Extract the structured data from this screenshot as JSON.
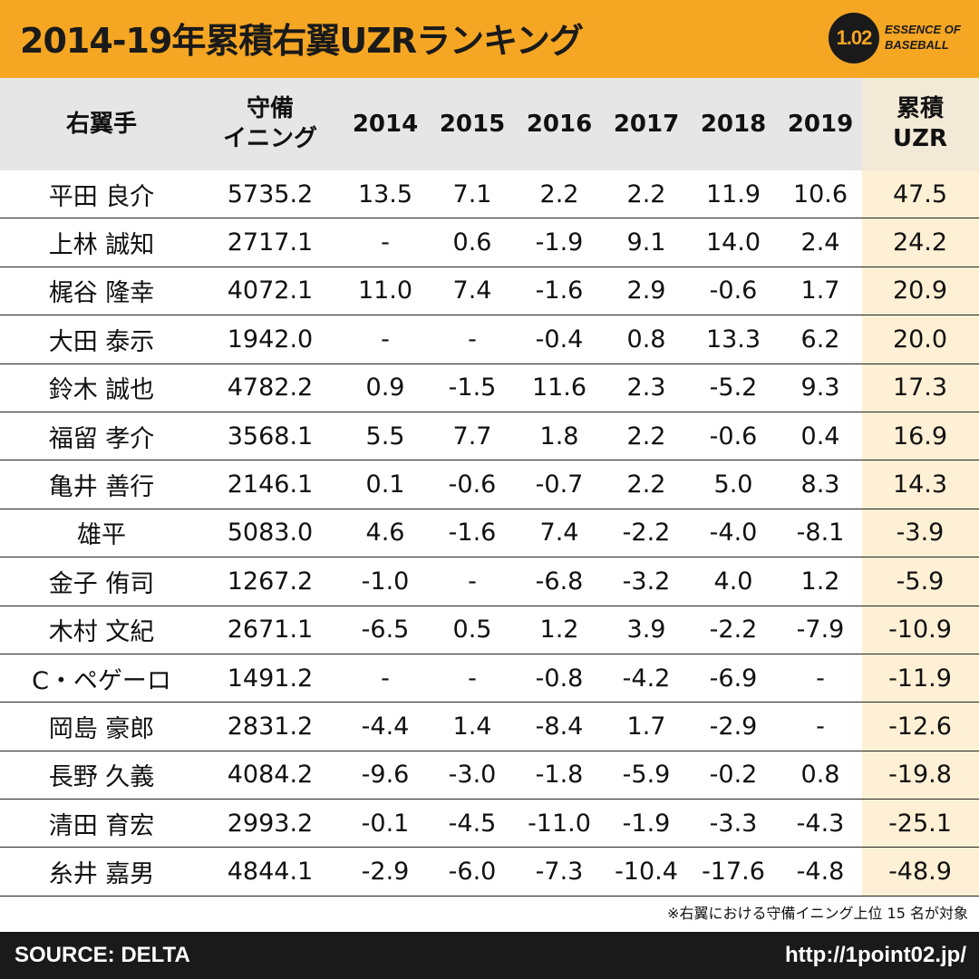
{
  "title": "2014-19年累積右翼UZRランキング",
  "logo": {
    "mark": "1.02",
    "line1": "ESSENCE OF",
    "line2": "BASEBALL"
  },
  "columns": [
    "右翼手",
    "守備\nイニング",
    "2014",
    "2015",
    "2016",
    "2017",
    "2018",
    "2019",
    "累積\nUZR"
  ],
  "rows": [
    [
      "平田 良介",
      "5735.2",
      "13.5",
      "7.1",
      "2.2",
      "2.2",
      "11.9",
      "10.6",
      "47.5"
    ],
    [
      "上林 誠知",
      "2717.1",
      "-",
      "0.6",
      "-1.9",
      "9.1",
      "14.0",
      "2.4",
      "24.2"
    ],
    [
      "梶谷 隆幸",
      "4072.1",
      "11.0",
      "7.4",
      "-1.6",
      "2.9",
      "-0.6",
      "1.7",
      "20.9"
    ],
    [
      "大田 泰示",
      "1942.0",
      "-",
      "-",
      "-0.4",
      "0.8",
      "13.3",
      "6.2",
      "20.0"
    ],
    [
      "鈴木 誠也",
      "4782.2",
      "0.9",
      "-1.5",
      "11.6",
      "2.3",
      "-5.2",
      "9.3",
      "17.3"
    ],
    [
      "福留 孝介",
      "3568.1",
      "5.5",
      "7.7",
      "1.8",
      "2.2",
      "-0.6",
      "0.4",
      "16.9"
    ],
    [
      "亀井 善行",
      "2146.1",
      "0.1",
      "-0.6",
      "-0.7",
      "2.2",
      "5.0",
      "8.3",
      "14.3"
    ],
    [
      "雄平",
      "5083.0",
      "4.6",
      "-1.6",
      "7.4",
      "-2.2",
      "-4.0",
      "-8.1",
      "-3.9"
    ],
    [
      "金子 侑司",
      "1267.2",
      "-1.0",
      "-",
      "-6.8",
      "-3.2",
      "4.0",
      "1.2",
      "-5.9"
    ],
    [
      "木村 文紀",
      "2671.1",
      "-6.5",
      "0.5",
      "1.2",
      "3.9",
      "-2.2",
      "-7.9",
      "-10.9"
    ],
    [
      "C・ペゲーロ",
      "1491.2",
      "-",
      "-",
      "-0.8",
      "-4.2",
      "-6.9",
      "-",
      "-11.9"
    ],
    [
      "岡島 豪郎",
      "2831.2",
      "-4.4",
      "1.4",
      "-8.4",
      "1.7",
      "-2.9",
      "-",
      "-12.6"
    ],
    [
      "長野 久義",
      "4084.2",
      "-9.6",
      "-3.0",
      "-1.8",
      "-5.9",
      "-0.2",
      "0.8",
      "-19.8"
    ],
    [
      "清田 育宏",
      "2993.2",
      "-0.1",
      "-4.5",
      "-11.0",
      "-1.9",
      "-3.3",
      "-4.3",
      "-25.1"
    ],
    [
      "糸井 嘉男",
      "4844.1",
      "-2.9",
      "-6.0",
      "-7.3",
      "-10.4",
      "-17.6",
      "-4.8",
      "-48.9"
    ]
  ],
  "footnote": "※右翼における守備イニング上位 15 名が対象",
  "source": "SOURCE: DELTA",
  "url": "http://1point02.jp/",
  "colors": {
    "header_bg": "#f5a623",
    "thead_bg": "#e6e6e6",
    "uzr_col_bg": "#fdf0d5",
    "footer_bg": "#1a1a1a"
  }
}
